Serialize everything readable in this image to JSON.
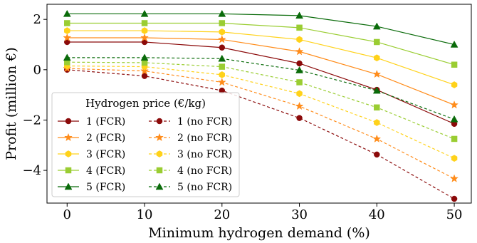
{
  "chart_data": {
    "type": "line",
    "xlabel": "Minimum hydrogen demand (%)",
    "ylabel": "Profit (million €)",
    "xlim": [
      -2.6,
      52.2
    ],
    "ylim": [
      -5.3,
      2.6
    ],
    "x_ticks": [
      0,
      10,
      20,
      30,
      40,
      50
    ],
    "y_ticks": [
      -4,
      -2,
      0,
      2
    ],
    "y_tick_labels": [
      "−4",
      "−2",
      "0",
      "2"
    ],
    "grid": false,
    "legend": {
      "title": "Hydrogen price (€/kg)",
      "placement": "lower-left",
      "columns": 2
    },
    "x": [
      0,
      10,
      20,
      30,
      40,
      50
    ],
    "series": [
      {
        "name": "1 (FCR)",
        "color": "#8b0a0a",
        "marker": "circle",
        "dashed": false,
        "values": [
          1.1,
          1.1,
          0.88,
          0.25,
          -0.8,
          -2.15
        ]
      },
      {
        "name": "2 (FCR)",
        "color": "#ff8c1a",
        "marker": "star",
        "dashed": false,
        "values": [
          1.27,
          1.27,
          1.2,
          0.72,
          -0.18,
          -1.4
        ]
      },
      {
        "name": "3 (FCR)",
        "color": "#ffd21a",
        "marker": "hexagon",
        "dashed": false,
        "values": [
          1.55,
          1.55,
          1.5,
          1.2,
          0.47,
          -0.6
        ]
      },
      {
        "name": "4 (FCR)",
        "color": "#9acd32",
        "marker": "square",
        "dashed": false,
        "values": [
          1.85,
          1.85,
          1.85,
          1.67,
          1.1,
          0.2
        ]
      },
      {
        "name": "5 (FCR)",
        "color": "#0a6b0a",
        "marker": "triangle",
        "dashed": false,
        "values": [
          2.22,
          2.22,
          2.22,
          2.15,
          1.72,
          1.0
        ]
      },
      {
        "name": "1 (no FCR)",
        "color": "#8b0a0a",
        "marker": "circle",
        "dashed": true,
        "values": [
          0.0,
          -0.25,
          -0.83,
          -1.92,
          -3.37,
          -5.13
        ]
      },
      {
        "name": "2 (no FCR)",
        "color": "#ff8c1a",
        "marker": "star",
        "dashed": true,
        "values": [
          0.05,
          -0.05,
          -0.5,
          -1.45,
          -2.75,
          -4.33
        ]
      },
      {
        "name": "3 (no FCR)",
        "color": "#ffd21a",
        "marker": "hexagon",
        "dashed": true,
        "values": [
          0.15,
          0.12,
          -0.2,
          -0.95,
          -2.1,
          -3.52
        ]
      },
      {
        "name": "4 (no FCR)",
        "color": "#9acd32",
        "marker": "square",
        "dashed": true,
        "values": [
          0.3,
          0.28,
          0.12,
          -0.5,
          -1.5,
          -2.75
        ]
      },
      {
        "name": "5 (no FCR)",
        "color": "#0a6b0a",
        "marker": "triangle",
        "dashed": true,
        "values": [
          0.48,
          0.48,
          0.44,
          -0.02,
          -0.83,
          -1.97
        ]
      }
    ]
  }
}
